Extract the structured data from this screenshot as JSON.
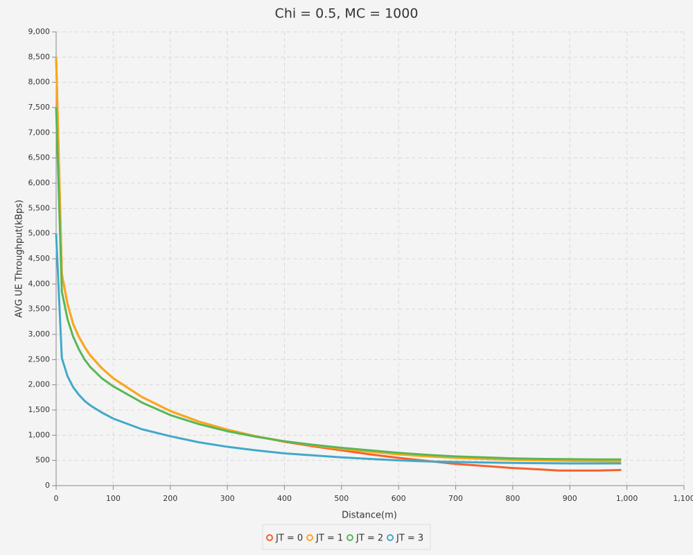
{
  "chart_data": {
    "type": "line",
    "title": "Chi = 0.5, MC = 1000",
    "x_label": "Distance(m)",
    "y_label": "AVG UE Throughput(kBps)",
    "x": [
      0,
      10,
      20,
      30,
      40,
      50,
      60,
      80,
      100,
      150,
      200,
      250,
      300,
      350,
      400,
      450,
      500,
      550,
      600,
      650,
      700,
      750,
      800,
      850,
      880,
      900,
      950,
      990
    ],
    "series": [
      {
        "name": "JT = 0",
        "color": "#f3622d",
        "values": [
          8500,
          4200,
          3600,
          3200,
          2950,
          2750,
          2580,
          2330,
          2130,
          1760,
          1480,
          1270,
          1110,
          980,
          870,
          780,
          700,
          620,
          550,
          490,
          430,
          390,
          350,
          320,
          300,
          300,
          300,
          310
        ]
      },
      {
        "name": "JT = 1",
        "color": "#fba71b",
        "values": [
          8500,
          4200,
          3600,
          3200,
          2950,
          2750,
          2580,
          2330,
          2130,
          1760,
          1480,
          1270,
          1110,
          980,
          880,
          800,
          730,
          670,
          620,
          580,
          550,
          530,
          510,
          500,
          495,
          490,
          485,
          480
        ]
      },
      {
        "name": "JT = 2",
        "color": "#57b757",
        "values": [
          7500,
          3850,
          3300,
          2950,
          2700,
          2500,
          2350,
          2130,
          1970,
          1650,
          1400,
          1220,
          1080,
          970,
          880,
          810,
          750,
          700,
          650,
          610,
          580,
          560,
          540,
          530,
          527,
          525,
          520,
          520
        ]
      },
      {
        "name": "JT = 3",
        "color": "#41a9c9",
        "values": [
          5000,
          2530,
          2170,
          1950,
          1800,
          1680,
          1590,
          1450,
          1330,
          1120,
          980,
          860,
          770,
          700,
          640,
          600,
          560,
          530,
          500,
          480,
          470,
          460,
          450,
          445,
          442,
          440,
          440,
          440
        ]
      }
    ],
    "xlim": [
      0,
      1100
    ],
    "xticks": [
      0,
      100,
      200,
      300,
      400,
      500,
      600,
      700,
      800,
      900,
      {
        "value": 1000,
        "label": "1,000"
      },
      {
        "value": 1100,
        "label": "1,100"
      }
    ],
    "ylim": [
      0,
      9000
    ],
    "yticks": [
      0,
      500,
      {
        "value": 1000,
        "label": "1,000"
      },
      {
        "value": 1500,
        "label": "1,500"
      },
      {
        "value": 2000,
        "label": "2,000"
      },
      {
        "value": 2500,
        "label": "2,500"
      },
      {
        "value": 3000,
        "label": "3,000"
      },
      {
        "value": 3500,
        "label": "3,500"
      },
      {
        "value": 4000,
        "label": "4,000"
      },
      {
        "value": 4500,
        "label": "4,500"
      },
      {
        "value": 5000,
        "label": "5,000"
      },
      {
        "value": 5500,
        "label": "5,500"
      },
      {
        "value": 6000,
        "label": "6,000"
      },
      {
        "value": 6500,
        "label": "6,500"
      },
      {
        "value": 7000,
        "label": "7,000"
      },
      {
        "value": 7500,
        "label": "7,500"
      },
      {
        "value": 8000,
        "label": "8,000"
      },
      {
        "value": 8500,
        "label": "8,500"
      },
      {
        "value": 9000,
        "label": "9,000"
      }
    ],
    "grid": true,
    "legend": "bottom"
  }
}
